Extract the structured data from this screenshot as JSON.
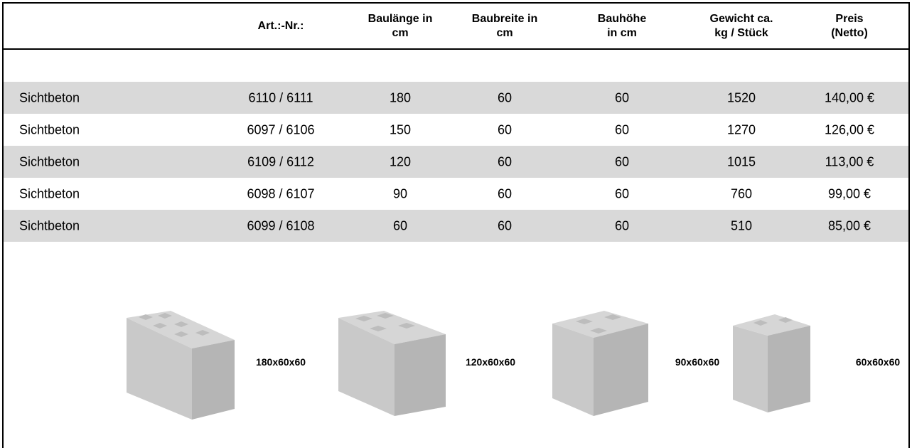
{
  "table": {
    "header": [
      [],
      [
        "Art.:-Nr.:"
      ],
      [
        "Baulänge in",
        "cm"
      ],
      [
        "Baubreite in",
        "cm"
      ],
      [
        "Bauhöhe",
        "in cm"
      ],
      [
        "Gewicht ca.",
        "kg / Stück"
      ],
      [
        "Preis",
        "(Netto)"
      ]
    ],
    "rows": [
      [
        "Sichtbeton",
        "6110 / 6111",
        180,
        60,
        60,
        1520,
        "140,00 €"
      ],
      [
        "Sichtbeton",
        "6097 / 6106",
        150,
        60,
        60,
        1270,
        "126,00 €"
      ],
      [
        "Sichtbeton",
        "6109 / 6112",
        120,
        60,
        60,
        1015,
        "113,00 €"
      ],
      [
        "Sichtbeton",
        "6098 / 6107",
        90,
        60,
        60,
        760,
        "99,00 €"
      ],
      [
        "Sichtbeton",
        "6099 / 6108",
        60,
        60,
        60,
        510,
        "85,00 €"
      ]
    ]
  },
  "images": [
    {
      "label": "180x60x60"
    },
    {
      "label": "120x60x60"
    },
    {
      "label": "90x60x60"
    },
    {
      "label": "60x60x60"
    }
  ]
}
